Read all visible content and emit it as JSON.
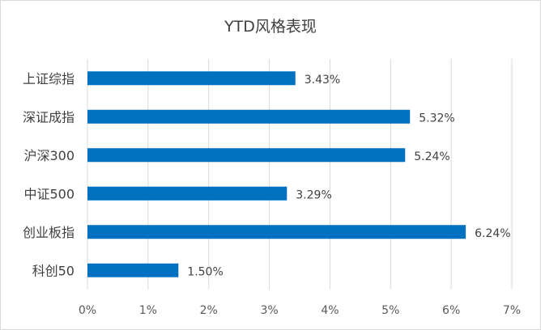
{
  "chart_data": {
    "type": "bar",
    "orientation": "horizontal",
    "title": "YTD风格表现",
    "categories": [
      "上证综指",
      "深证成指",
      "沪深300",
      "中证500",
      "创业板指",
      "科创50"
    ],
    "values": [
      3.43,
      5.32,
      5.24,
      3.29,
      6.24,
      1.5
    ],
    "data_labels": [
      "3.43%",
      "5.32%",
      "5.24%",
      "3.29%",
      "6.24%",
      "1.50%"
    ],
    "x_ticks": [
      "0%",
      "1%",
      "2%",
      "3%",
      "4%",
      "5%",
      "6%",
      "7%"
    ],
    "xlim": [
      0,
      7
    ],
    "xlabel": "",
    "ylabel": "",
    "grid": "vertical",
    "legend": "none",
    "bar_color": "#0070C0",
    "grid_color": "#d9d9d9"
  }
}
